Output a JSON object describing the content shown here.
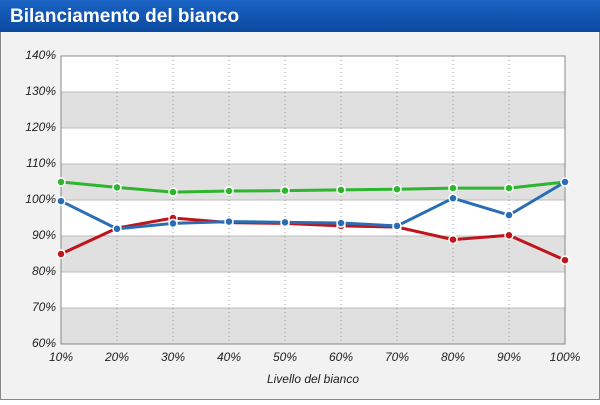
{
  "chart_data": {
    "type": "line",
    "title": "Bilanciamento del bianco",
    "x_label": "Livello del bianco",
    "categories": [
      "10%",
      "20%",
      "30%",
      "40%",
      "50%",
      "60%",
      "70%",
      "80%",
      "90%",
      "100%"
    ],
    "series": [
      {
        "color": "#2db52d",
        "values": [
          105,
          103.5,
          102.2,
          102.5,
          102.6,
          102.8,
          103,
          103.3,
          103.3,
          105
        ]
      },
      {
        "color": "#c0141c",
        "values": [
          85,
          92.2,
          95,
          93.7,
          93.5,
          92.8,
          92.5,
          89,
          90.2,
          83.3
        ]
      },
      {
        "color": "#2a6db5",
        "values": [
          99.7,
          92,
          93.5,
          94,
          93.8,
          93.6,
          92.8,
          100.5,
          95.8,
          105
        ]
      }
    ],
    "ylim": [
      60,
      140
    ],
    "yticks": [
      {
        "value": 60,
        "label": "60%"
      },
      {
        "value": 70,
        "label": "70%"
      },
      {
        "value": 80,
        "label": "80%"
      },
      {
        "value": 90,
        "label": "90%"
      },
      {
        "value": 100,
        "label": "100%"
      },
      {
        "value": 110,
        "label": "110%"
      },
      {
        "value": 120,
        "label": "120%"
      },
      {
        "value": 130,
        "label": "130%"
      },
      {
        "value": 140,
        "label": "140%"
      }
    ],
    "grid": true
  }
}
